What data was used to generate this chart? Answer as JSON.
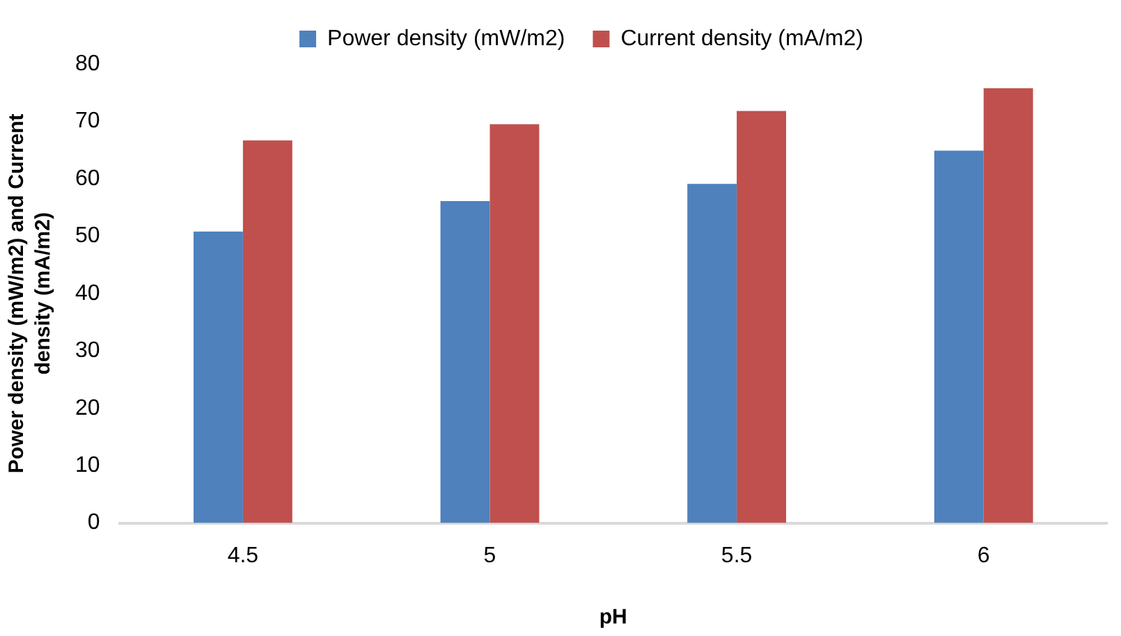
{
  "chart_data": {
    "type": "bar",
    "xlabel": "pH",
    "ylabel": "Power density (mW/m2) and Current density (mA/m2)",
    "categories": [
      "4.5",
      "5",
      "5.5",
      "6"
    ],
    "series": [
      {
        "name": "Power density (mW/m2)",
        "color": "#4f81bd",
        "values": [
          50.8,
          56.1,
          59.1,
          64.9
        ]
      },
      {
        "name": "Current density (mA/m2)",
        "color": "#c0504d",
        "values": [
          66.7,
          69.5,
          71.8,
          75.8
        ]
      }
    ],
    "ylim": [
      0,
      80
    ],
    "yticks": [
      0,
      10,
      20,
      30,
      40,
      50,
      60,
      70,
      80
    ],
    "grid": false,
    "legend": "top"
  }
}
